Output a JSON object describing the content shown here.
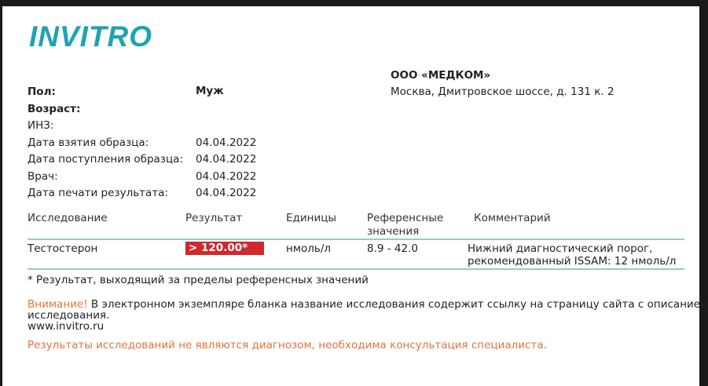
{
  "logo": "INVITRO",
  "lab": {
    "name": "ООО «МЕДКОМ»",
    "address": "Москва, Дмитровское шоссе, д. 131 к. 2"
  },
  "patient": {
    "sex_label": "Пол:",
    "sex_value": "Муж",
    "age_label": "Возраст:",
    "inz_label": "ИНЗ:",
    "fields": [
      {
        "label": "Дата взятия образца:",
        "value": "04.04.2022"
      },
      {
        "label": "Дата поступления образца:",
        "value": "04.04.2022"
      },
      {
        "label": "Врач:",
        "value": "04.04.2022"
      },
      {
        "label": "Дата печати результата:",
        "value": "04.04.2022"
      }
    ]
  },
  "table": {
    "headers": [
      "Исследование",
      "Результат",
      "Единицы",
      "Референсные",
      "значения",
      "Комментарий"
    ],
    "rows": [
      {
        "test": "Тестостерон",
        "result": "> 120.00*",
        "units": "нмоль/л",
        "ref": "8.9 - 42.0",
        "comment1": "Нижний диагностический порог,",
        "comment2": "рекомендованный ISSAM: 12 нмоль/л"
      }
    ]
  },
  "footnote": "* Результат, выходящий за пределы референсных значений",
  "notice": {
    "warning": "Внимание!",
    "text": " В электронном экземпляре бланка название исследования содержит ссылку на страницу сайта с описанием",
    "text2": "исследования.",
    "site": "www.invitro.ru"
  },
  "disclaimer": "Результаты исследований не являются диагнозом, необходима консультация специалиста.",
  "colors": {
    "brand": "#1fa3b0",
    "result_flag": "#d0282c",
    "warning": "#e0743a"
  }
}
